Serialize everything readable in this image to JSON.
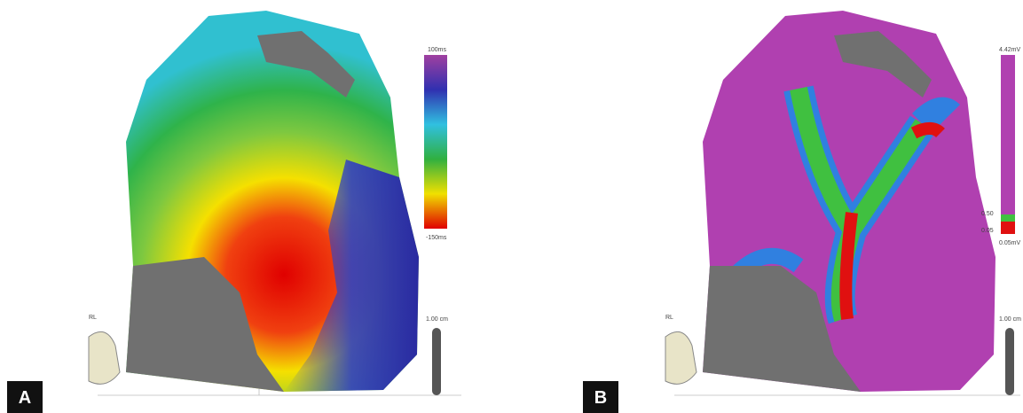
{
  "panels": [
    {
      "label": "A",
      "scale_top": "100ms",
      "scale_bottom": "-150ms",
      "ruler": "1.00 cm",
      "orientation": "RL"
    },
    {
      "label": "B",
      "scale_top": "4.42mV",
      "scale_mid_top": "0.50",
      "scale_mid_bottom": "0.05",
      "scale_bottom": "0.05mV",
      "ruler": "1.00 cm",
      "orientation": "RL"
    }
  ]
}
